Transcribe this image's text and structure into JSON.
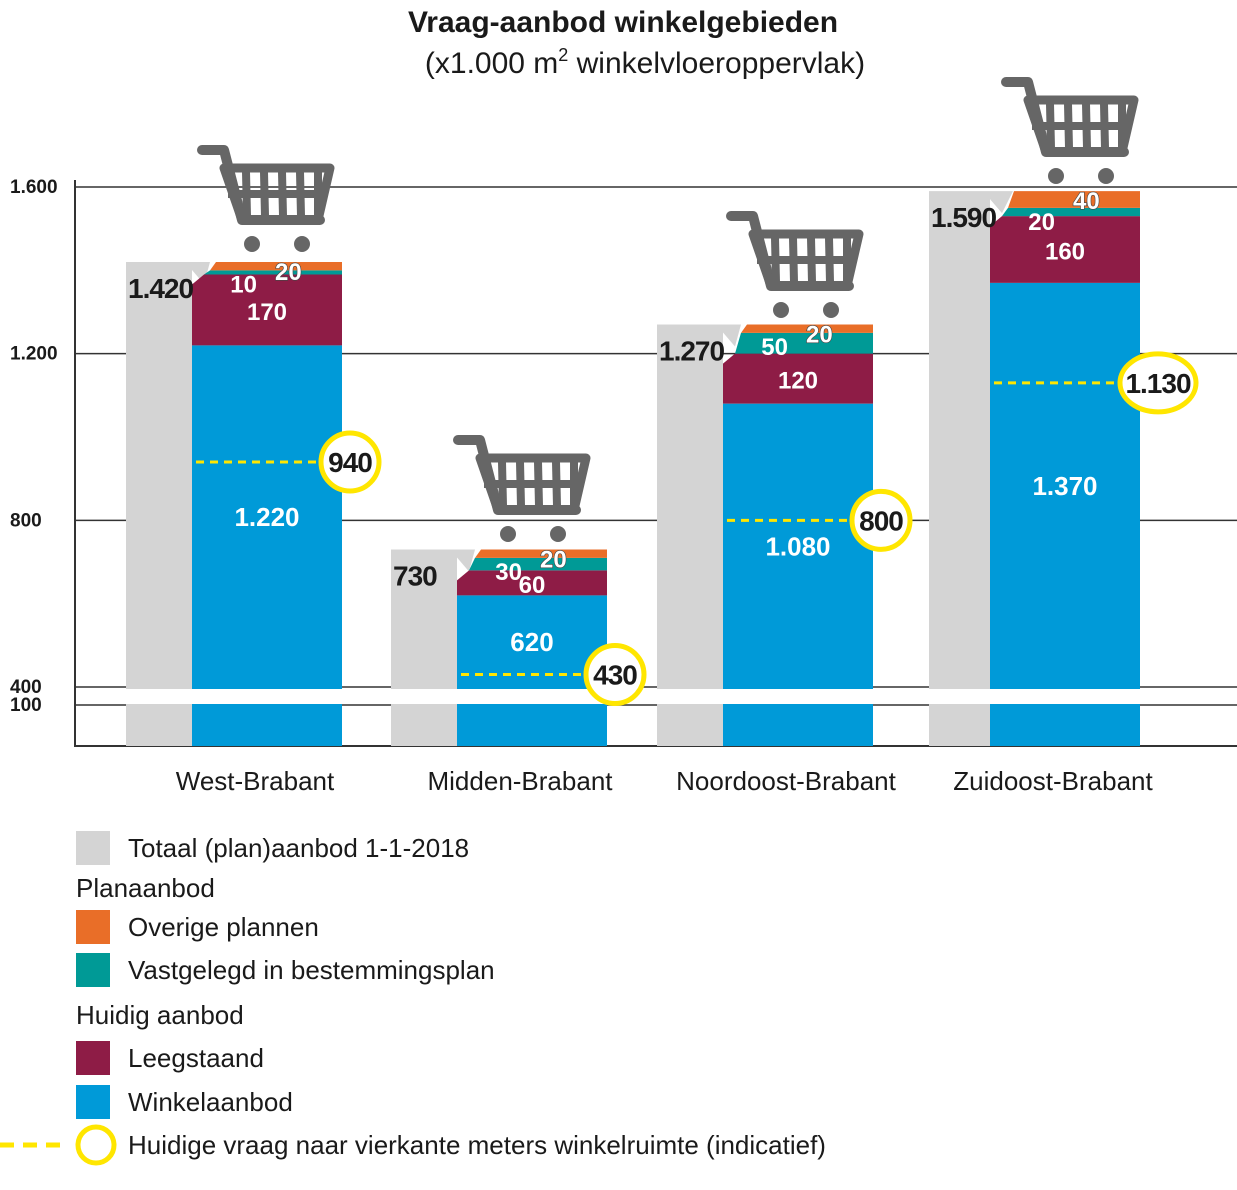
{
  "colors": {
    "total": "#d4d4d4",
    "overige": "#e96e28",
    "vastgelegd": "#009a96",
    "leegstaand": "#8e1c46",
    "winkel": "#009ad8",
    "vraag": "#ffe600",
    "axis": "#333333",
    "cart": "#666666"
  },
  "chart_data": {
    "type": "bar",
    "title": "Vraag-aanbod winkelgebieden",
    "subtitle_pre": "(x1.000 m",
    "subtitle_sup": "2",
    "subtitle_post": " winkelvloeroppervlak)",
    "y_ticks": [
      "1.600",
      "1.200",
      "800",
      "400",
      "100"
    ],
    "y_tick_values": [
      1600,
      1200,
      800,
      400,
      100
    ],
    "axis_break": "between 100 and 400",
    "grid": true,
    "legend_position": "bottom-left",
    "categories": [
      "West-Brabant",
      "Midden-Brabant",
      "Noordoost-Brabant",
      "Zuidoost-Brabant"
    ],
    "series": [
      {
        "name": "Totaal (plan)aanbod 1-1-2018",
        "key": "total",
        "values": [
          1420,
          730,
          1270,
          1590
        ],
        "labels": [
          "1.420",
          "730",
          "1.270",
          "1.590"
        ]
      },
      {
        "name": "Winkelaanbod",
        "key": "winkel",
        "values": [
          1220,
          620,
          1080,
          1370
        ],
        "labels": [
          "1.220",
          "620",
          "1.080",
          "1.370"
        ]
      },
      {
        "name": "Leegstaand",
        "key": "leegstaand",
        "values": [
          170,
          60,
          120,
          160
        ],
        "labels": [
          "170",
          "60",
          "120",
          "160"
        ]
      },
      {
        "name": "Vastgelegd in bestemmingsplan",
        "key": "vastgelegd",
        "values": [
          10,
          30,
          50,
          20
        ],
        "labels": [
          "10",
          "30",
          "50",
          "20"
        ]
      },
      {
        "name": "Overige plannen",
        "key": "overige",
        "values": [
          20,
          20,
          20,
          40
        ],
        "labels": [
          "20",
          "20",
          "20",
          "40"
        ]
      },
      {
        "name": "Huidige vraag naar vierkante meters winkelruimte (indicatief)",
        "key": "vraag",
        "values": [
          940,
          430,
          800,
          1130
        ],
        "labels": [
          "940",
          "430",
          "800",
          "1.130"
        ]
      }
    ]
  },
  "legend": {
    "total": "Totaal (plan)aanbod 1-1-2018",
    "group_plan": "Planaanbod",
    "overige": "Overige plannen",
    "vastgelegd": "Vastgelegd in bestemmingsplan",
    "group_huidig": "Huidig aanbod",
    "leegstaand": "Leegstaand",
    "winkel": "Winkelaanbod",
    "vraag": "Huidige vraag naar vierkante meters winkelruimte (indicatief)"
  },
  "icons": {
    "cart": "shopping-cart-icon"
  }
}
